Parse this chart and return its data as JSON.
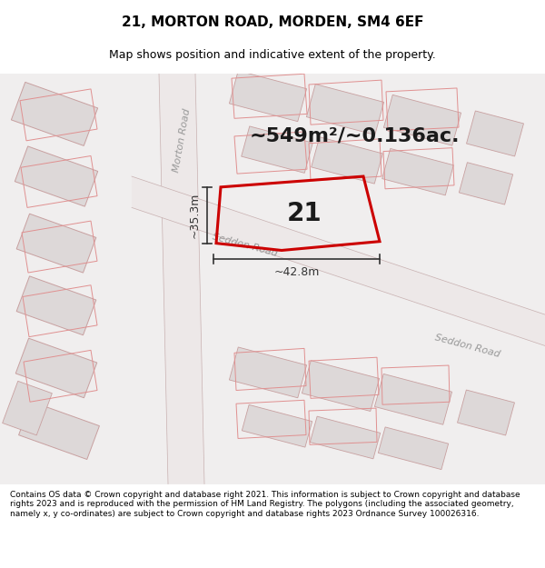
{
  "title": "21, MORTON ROAD, MORDEN, SM4 6EF",
  "subtitle": "Map shows position and indicative extent of the property.",
  "area_text": "~549m²/~0.136ac.",
  "number_label": "21",
  "dim_vertical": "~35.3m",
  "dim_horizontal": "~42.8m",
  "road_label_morton": "Morton Road",
  "road_label_seddon1": "Seddon Road",
  "road_label_seddon2": "Seddon Road",
  "footer": "Contains OS data © Crown copyright and database right 2021. This information is subject to Crown copyright and database rights 2023 and is reproduced with the permission of HM Land Registry. The polygons (including the associated geometry, namely x, y co-ordinates) are subject to Crown copyright and database rights 2023 Ordnance Survey 100026316.",
  "bg_color": "#f5f0f0",
  "highlight_color": "#cc0000",
  "dim_color": "#333333",
  "title_color": "#000000",
  "footer_color": "#000000",
  "map_bg": "#f0eeee",
  "road_fill": "#ede8e8",
  "building_fill": "#ddd8d8",
  "building_edge": "#c8a0a0",
  "outline_edge": "#e09090",
  "road_label_color": "#999999",
  "area_text_fontsize": 16,
  "number_fontsize": 20,
  "dim_fontsize": 9,
  "title_fontsize": 11,
  "subtitle_fontsize": 9,
  "footer_fontsize": 6.5
}
